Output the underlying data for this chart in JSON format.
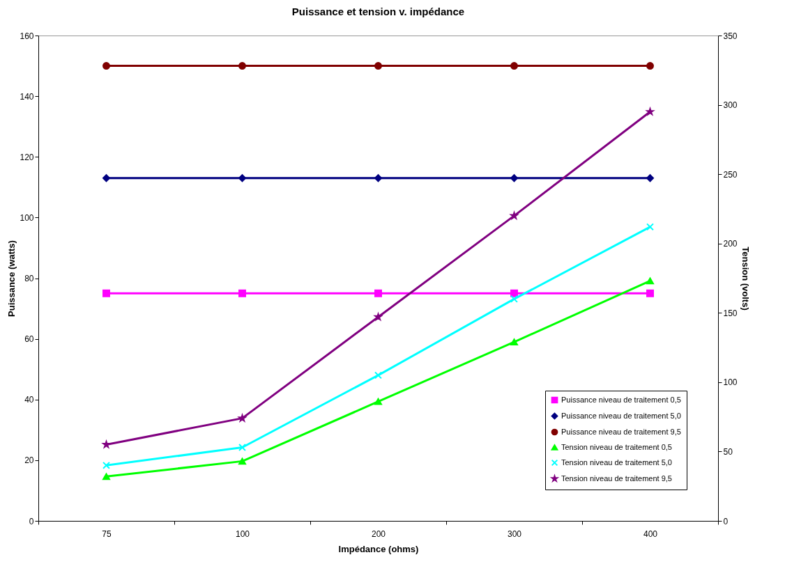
{
  "chart_data": {
    "type": "line",
    "title": "Puissance et tension v. impédance",
    "xlabel": "Impédance (ohms)",
    "ylabel": "Puissance (watts)",
    "y2label": "Tension (volts)",
    "categories": [
      "75",
      "100",
      "200",
      "300",
      "400"
    ],
    "ylim": [
      0,
      160
    ],
    "yticks": [
      0,
      20,
      40,
      60,
      80,
      100,
      120,
      140,
      160
    ],
    "y2lim": [
      0,
      350
    ],
    "y2ticks": [
      0,
      50,
      100,
      150,
      200,
      250,
      300,
      350
    ],
    "grid": false,
    "legend": "bottom right",
    "series": [
      {
        "name": "Puissance niveau de traitement 0,5",
        "color": "#ff00ff",
        "marker": "square",
        "values": [
          75,
          75,
          75,
          75,
          75
        ]
      },
      {
        "name": "Puissance niveau de traitement 5,0",
        "color": "#000080",
        "marker": "diamond",
        "values": [
          113,
          113,
          113,
          113,
          113
        ]
      },
      {
        "name": "Puissance niveau de traitement 9,5",
        "color": "#800000",
        "marker": "circle",
        "values": [
          150,
          150,
          150,
          150,
          150
        ]
      },
      {
        "name": "Tension niveau de traitement 0,5",
        "color": "#00ff00",
        "marker": "triangle",
        "axis": "y2",
        "values": [
          32,
          43,
          86,
          129,
          173
        ]
      },
      {
        "name": "Tension niveau de traitement 5,0",
        "color": "#00ffff",
        "marker": "cross",
        "axis": "y2",
        "values": [
          40,
          53,
          105,
          160,
          212
        ]
      },
      {
        "name": "Tension niveau de traitement 9,5",
        "color": "#800080",
        "marker": "star",
        "axis": "y2",
        "values": [
          55,
          74,
          147,
          220,
          295
        ]
      }
    ]
  }
}
